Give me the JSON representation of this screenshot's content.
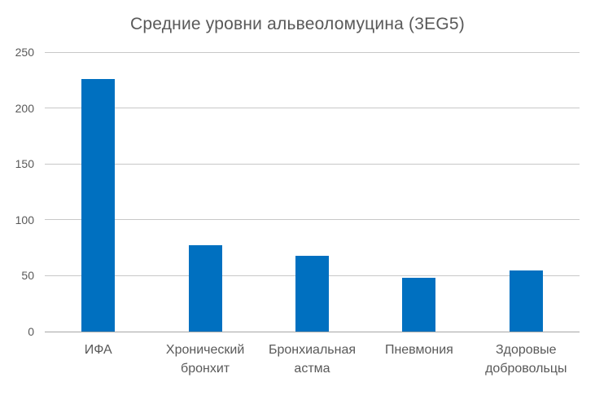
{
  "chart_data": {
    "type": "bar",
    "title": "Средние уровни альвеоломуцина (3EG5)",
    "categories": [
      "ИФА",
      "Хронический бронхит",
      "Бронхиальная астма",
      "Пневмония",
      "Здоровые добровольцы"
    ],
    "values": [
      226,
      77,
      68,
      48,
      55
    ],
    "xlabel": "",
    "ylabel": "",
    "ylim": [
      0,
      250
    ],
    "yticks": [
      0,
      50,
      100,
      150,
      200,
      250
    ],
    "grid": true,
    "legend": false,
    "colors": {
      "bar": "#0070C0",
      "text": "#595959",
      "gridline": "#C8C8C8",
      "axis_line": "#A6A6A6",
      "background": "#FFFFFF"
    }
  }
}
